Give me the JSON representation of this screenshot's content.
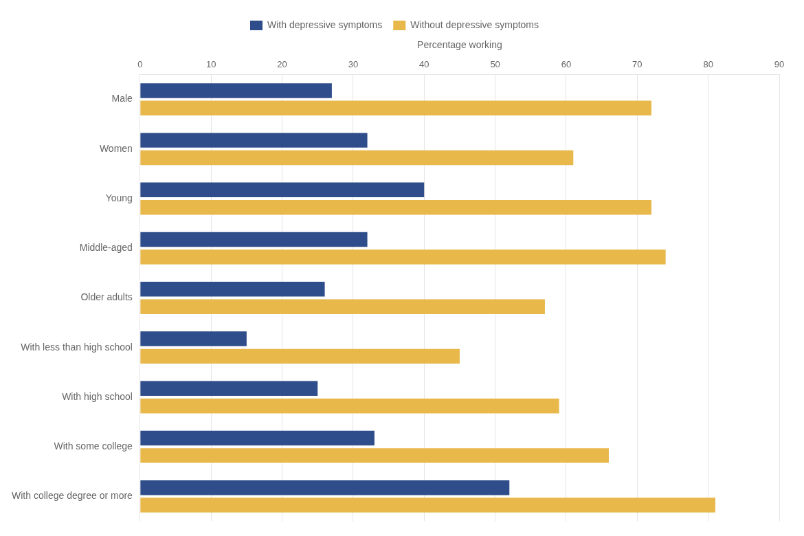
{
  "chart_data": {
    "type": "bar",
    "orientation": "horizontal",
    "categories": [
      "Male",
      "Women",
      "Young",
      "Middle-aged",
      "Older adults",
      "With less than high school",
      "With high school",
      "With some college",
      "With college degree or more"
    ],
    "series": [
      {
        "name": "With depressive symptoms",
        "color": "#2E4D8A",
        "values": [
          27,
          32,
          40,
          32,
          26,
          15,
          25,
          33,
          52
        ]
      },
      {
        "name": "Without depressive symptoms",
        "color": "#E8B84B",
        "values": [
          72,
          61,
          72,
          74,
          57,
          45,
          59,
          66,
          81
        ]
      }
    ],
    "xlabel": "Percentage working",
    "xlim": [
      0,
      90
    ],
    "xticks": [
      0,
      10,
      20,
      30,
      40,
      50,
      60,
      70,
      80,
      90
    ],
    "grid": "x",
    "legend": "top"
  }
}
